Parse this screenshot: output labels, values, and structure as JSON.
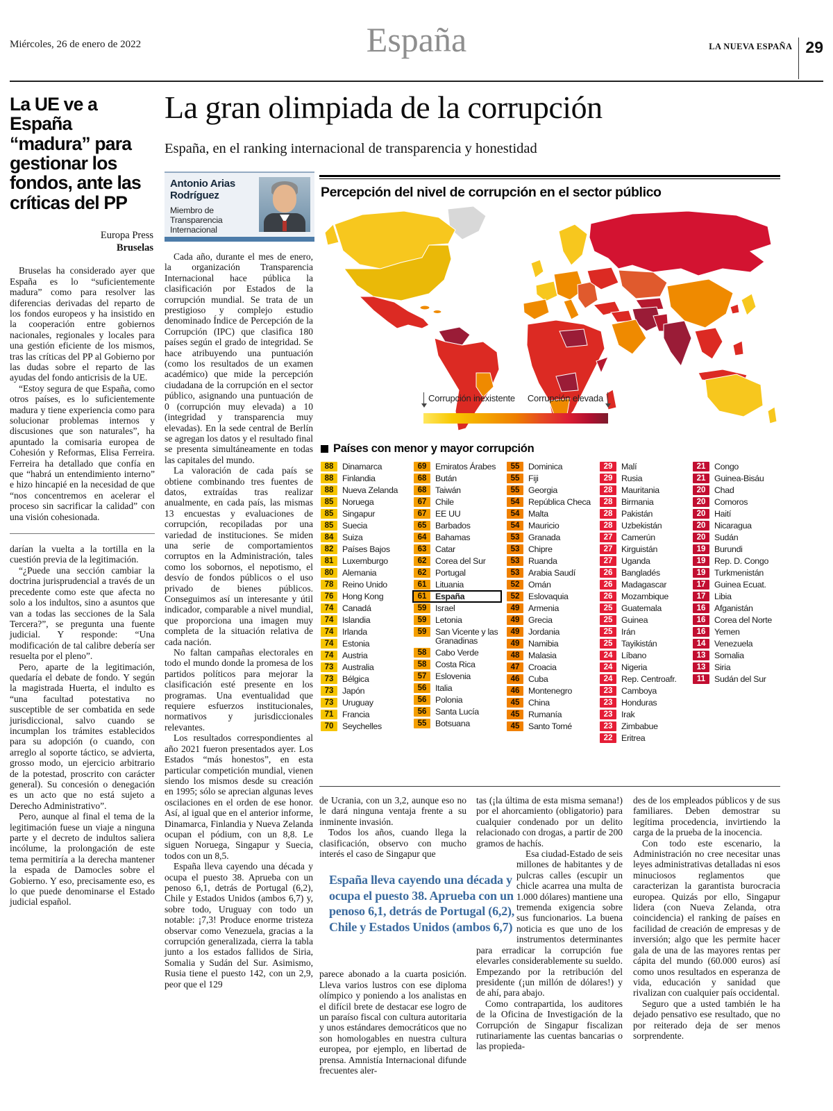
{
  "header": {
    "date": "Miércoles, 26 de enero de 2022",
    "section": "España",
    "masthead": "LA NUEVA ESPAÑA",
    "page_number": "29"
  },
  "left_article": {
    "headline": "La UE ve a España “madura” para gestionar los fondos, ante las críticas del PP",
    "agency": "Europa Press",
    "place": "Bruselas",
    "paragraphs": [
      "Bruselas ha considerado ayer que España es lo “suficientemente madura” como para resolver las diferencias derivadas del reparto de los fondos europeos y ha insistido en la cooperación entre gobiernos nacionales, regionales y locales para una gestión eficiente de los mismos, tras las críticas del PP al Gobierno por las dudas sobre el reparto de las ayudas del fondo anticrisis de la UE.",
      "“Estoy segura de que España, como otros países, es lo suficientemente madura y tiene experiencia como para solucionar problemas internos y discusiones que son naturales”, ha apuntado la comisaria europea de Cohesión y Reformas, Elisa Ferreira. Ferreira ha detallado que confía en que “habrá un entendimiento interno” e hizo hincapié en la necesidad de que “nos concentremos en acelerar el proceso sin sacrificar la calidad” con una visión cohesionada."
    ],
    "fragment_paragraphs": [
      "darían la vuelta a la tortilla en la cuestión previa de la legitimación.",
      "“¿Puede una sección cambiar la doctrina jurisprudencial a través de un precedente como este que afecta no solo a los indultos, sino a asuntos que van a todas las secciones de la Sala Tercera?”, se pregunta una fuente judicial. Y responde: “Una modificación de tal calibre debería ser resuelta por el pleno”.",
      "Pero, aparte de la legitimación, quedaría el debate de fondo. Y según la magistrada Huerta, el indulto es “una facultad potestativa no susceptible de ser combatida en sede jurisdiccional, salvo cuando se incumplan los trámites establecidos para su adopción (o cuando, con arreglo al soporte táctico, se advierta, grosso modo, un ejercicio arbitrario de la potestad, proscrito con carácter general). Su concesión o denegación es un acto que no está sujeto a Derecho Administrativo”.",
      "Pero, aunque al final el tema de la legitimación fuese un viaje a ninguna parte y el decreto de indultos saliera incólume, la prolongación de este tema permitiría a la derecha mantener la espada de Damocles sobre el Gobierno. Y eso, precisamente eso, es lo que puede denominarse el Estado judicial español."
    ]
  },
  "main_article": {
    "headline": "La gran olimpiada de la corrupción",
    "subhead": "España, en el ranking internacional de transparencia y honestidad",
    "author_name": "Antonio Arias Rodríguez",
    "author_role": "Miembro de Transparencia Internacional",
    "col1_paragraphs": [
      "Cada año, durante el mes de enero, la organización Transparencia Internacional hace pública la clasificación por Estados de la corrupción mundial. Se trata de un prestigioso y complejo estudio denominado Índice de Percepción de la Corrupción (IPC) que clasifica 180 países según el grado de integridad. Se hace atribuyendo una puntuación (como los resultados de un examen académico) que mide la percepción ciudadana de la corrupción en el sector público, asignando una puntuación de 0 (corrupción muy elevada) a 10 (integridad y transparencia muy elevadas). En la sede central de Berlín se agregan los datos y el resultado final se presenta simultáneamente en todas las capitales del mundo.",
      "La valoración de cada país se obtiene combinando tres fuentes de datos, extraídas tras realizar anualmente, en cada país, las mismas 13 encuestas y evaluaciones de corrupción, recopiladas por una variedad de instituciones. Se miden una serie de comportamientos corruptos en la Administración, tales como los sobornos, el nepotismo, el desvío de fondos públicos o el uso privado de bienes públicos. Conseguimos así un interesante y útil indicador, comparable a nivel mundial, que proporciona una imagen muy completa de la situación relativa de cada nación.",
      "No faltan campañas electorales en todo el mundo donde la promesa de los partidos políticos para mejorar la clasificación esté presente en los programas. Una eventualidad que requiere esfuerzos institucionales, normativos y jurisdiccionales relevantes.",
      "Los resultados correspondientes al año 2021 fueron presentados ayer. Los Estados “más honestos”, en esta particular competición mundial, vienen siendo los mismos desde su creación en 1995; sólo se aprecian algunas leves oscilaciones en el orden de ese honor. Así, al igual que en el anterior informe, Dinamarca, Finlandia y Nueva Zelanda ocupan el pódium, con un 8,8. Le siguen Noruega, Singapur y Suecia, todos con un 8,5.",
      "España lleva cayendo una década y ocupa el puesto 38. Aprueba con un penoso 6,1, detrás de Portugal (6,2), Chile y Estados Unidos (ambos 6,7) y, sobre todo, Uruguay con todo un notable: ¡7,3! Produce enorme tristeza observar como Venezuela, gracias a la corrupción generalizada, cierra la tabla junto a los estados fallidos de Siria, Somalia y Sudán del Sur. Asimismo, Rusia tiene el puesto 142, con un 2,9, peor que el 129"
    ],
    "bottom_col1_lead": [
      "de Ucrania, con un 3,2, aunque eso no le dará ninguna ventaja frente a su inminente invasión.",
      "Todos los años, cuando llega la clasificación, observo con mucho interés el caso de Singapur que"
    ],
    "pull_quote": "España lleva cayendo una década y ocupa el puesto 38. Aprueba con un penoso 6,1, detrás de Portugal (6,2), Chile y Estados Unidos (ambos 6,7)",
    "bottom_col1_rest": [
      "parece abonado a la cuarta posición. Lleva varios lustros con ese diploma olímpico y poniendo a los analistas en el difícil brete de destacar ese logro de un paraíso fiscal con cultura autoritaria y unos estándares democráticos que no son homologables en nuestra cultura europea, por ejemplo, en libertad de prensa. Amnistía Internacional difunde frecuentes aler-"
    ],
    "bottom_col2_first": [
      "tas (¡la última de esta misma semana!) por el ahorcamiento (obligatorio) para cualquier condenado por un delito relacionado con drogas, a partir de 200 gramos de hachís."
    ],
    "bottom_col2_rest": [
      "Esa ciudad-Estado de seis millones de habitantes y de pulcras calles (escupir un chicle acarrea una multa de 1.000 dólares) mantiene una tremenda exigencia sobre sus funcionarios. La buena noticia es que uno de los instrumentos determinantes para erradicar la corrupción fue elevarles considerablemente su sueldo. Empezando por la retribución del presidente (¡un millón de dólares!) y de ahí, para abajo.",
      "Como contrapartida, los auditores de la Oficina de Investigación de la Corrupción de Singapur fiscalizan rutinariamente las cuentas bancarias o las propieda-"
    ],
    "bottom_col3_paragraphs": [
      "des de los empleados públicos y de sus familiares. Deben demostrar su legítima procedencia, invirtiendo la carga de la prueba de la inocencia.",
      "Con todo este escenario, la Administración no cree necesitar unas leyes administrativas detalladas ni esos minuciosos reglamentos que caracterizan la garantista burocracia europea. Quizás por ello, Singapur lidera (con Nueva Zelanda, otra coincidencia) el ranking de países en facilidad de creación de empresas y de inversión; algo que les permite hacer gala de una de las mayores rentas per cápita del mundo (60.000 euros) así como unos resultados en esperanza de vida, educación y sanidad que rivalizan con cualquier país occidental.",
      "Seguro que a usted también le ha dejado pensativo ese resultado, que no por reiterado deja de ser menos sorprendente."
    ]
  },
  "infographic": {
    "title": "Percepción del nivel de corrupción en el sector público",
    "legend": {
      "left": "Corrupción inexistente",
      "right": "Corrupción elevada"
    },
    "table_title": "Países con menor y mayor corrupción",
    "palette": {
      "badge_bg": [
        "#f5c400",
        "#f49e00",
        "#f08000",
        "#e51d36",
        "#c20e31"
      ],
      "badge_fg": [
        "#201a00",
        "#1a1200",
        "#1a0e00",
        "#ffffff",
        "#ffffff"
      ]
    },
    "map_palette": {
      "very_low": "#f7c71e",
      "low": "#eab908",
      "medium": "#ef8a00",
      "high": "#dc2a23",
      "very_high": "#9a1c37",
      "russia": "#d31331",
      "no_data": "#d8d8d8"
    },
    "columns": [
      [
        {
          "s": "88",
          "c": "Dinamarca"
        },
        {
          "s": "88",
          "c": "Finlandia"
        },
        {
          "s": "88",
          "c": "Nueva Zelanda"
        },
        {
          "s": "85",
          "c": "Noruega"
        },
        {
          "s": "85",
          "c": "Singapur"
        },
        {
          "s": "85",
          "c": "Suecia"
        },
        {
          "s": "84",
          "c": "Suiza"
        },
        {
          "s": "82",
          "c": "Países Bajos"
        },
        {
          "s": "81",
          "c": "Luxemburgo"
        },
        {
          "s": "80",
          "c": "Alemania"
        },
        {
          "s": "78",
          "c": "Reino Unido"
        },
        {
          "s": "76",
          "c": "Hong Kong"
        },
        {
          "s": "74",
          "c": "Canadá"
        },
        {
          "s": "74",
          "c": "Islandia"
        },
        {
          "s": "74",
          "c": "Irlanda"
        },
        {
          "s": "74",
          "c": "Estonia"
        },
        {
          "s": "74",
          "c": "Austria"
        },
        {
          "s": "73",
          "c": "Australia"
        },
        {
          "s": "73",
          "c": "Bélgica"
        },
        {
          "s": "73",
          "c": "Japón"
        },
        {
          "s": "73",
          "c": "Uruguay"
        },
        {
          "s": "71",
          "c": "Francia"
        },
        {
          "s": "70",
          "c": "Seychelles"
        }
      ],
      [
        {
          "s": "69",
          "c": "Emiratos Árabes"
        },
        {
          "s": "68",
          "c": "Bután"
        },
        {
          "s": "68",
          "c": "Taiwán"
        },
        {
          "s": "67",
          "c": "Chile"
        },
        {
          "s": "67",
          "c": "EE UU"
        },
        {
          "s": "65",
          "c": "Barbados"
        },
        {
          "s": "64",
          "c": "Bahamas"
        },
        {
          "s": "63",
          "c": "Catar"
        },
        {
          "s": "62",
          "c": "Corea del Sur"
        },
        {
          "s": "62",
          "c": "Portugal"
        },
        {
          "s": "61",
          "c": "Lituania"
        },
        {
          "s": "61",
          "c": "España",
          "h": true
        },
        {
          "s": "59",
          "c": "Israel"
        },
        {
          "s": "59",
          "c": "Letonia"
        },
        {
          "s": "59",
          "c": "San Vicente y las Granadinas"
        },
        {
          "s": "58",
          "c": "Cabo Verde"
        },
        {
          "s": "58",
          "c": "Costa Rica"
        },
        {
          "s": "57",
          "c": "Eslovenia"
        },
        {
          "s": "56",
          "c": "Italia"
        },
        {
          "s": "56",
          "c": "Polonia"
        },
        {
          "s": "56",
          "c": "Santa Lucía"
        },
        {
          "s": "55",
          "c": "Botsuana"
        }
      ],
      [
        {
          "s": "55",
          "c": "Dominica"
        },
        {
          "s": "55",
          "c": "Fiji"
        },
        {
          "s": "55",
          "c": "Georgia"
        },
        {
          "s": "54",
          "c": "República Checa"
        },
        {
          "s": "54",
          "c": "Malta"
        },
        {
          "s": "54",
          "c": "Mauricio"
        },
        {
          "s": "53",
          "c": "Granada"
        },
        {
          "s": "53",
          "c": "Chipre"
        },
        {
          "s": "53",
          "c": "Ruanda"
        },
        {
          "s": "53",
          "c": "Arabia Saudí"
        },
        {
          "s": "52",
          "c": "Omán"
        },
        {
          "s": "52",
          "c": "Eslovaquia"
        },
        {
          "s": "49",
          "c": "Armenia"
        },
        {
          "s": "49",
          "c": "Grecia"
        },
        {
          "s": "49",
          "c": "Jordania"
        },
        {
          "s": "49",
          "c": "Namibia"
        },
        {
          "s": "48",
          "c": "Malasia"
        },
        {
          "s": "47",
          "c": "Croacia"
        },
        {
          "s": "46",
          "c": "Cuba"
        },
        {
          "s": "46",
          "c": "Montenegro"
        },
        {
          "s": "45",
          "c": "China"
        },
        {
          "s": "45",
          "c": "Rumanía"
        },
        {
          "s": "45",
          "c": "Santo Tomé"
        }
      ],
      [
        {
          "s": "29",
          "c": "Malí"
        },
        {
          "s": "29",
          "c": "Rusia"
        },
        {
          "s": "28",
          "c": "Mauritania"
        },
        {
          "s": "28",
          "c": "Birmania"
        },
        {
          "s": "28",
          "c": "Pakistán"
        },
        {
          "s": "28",
          "c": "Uzbekistán"
        },
        {
          "s": "27",
          "c": "Camerún"
        },
        {
          "s": "27",
          "c": "Kirguistán"
        },
        {
          "s": "27",
          "c": "Uganda"
        },
        {
          "s": "26",
          "c": "Bangladés"
        },
        {
          "s": "26",
          "c": "Madagascar"
        },
        {
          "s": "26",
          "c": "Mozambique"
        },
        {
          "s": "25",
          "c": "Guatemala"
        },
        {
          "s": "25",
          "c": "Guinea"
        },
        {
          "s": "25",
          "c": "Irán"
        },
        {
          "s": "25",
          "c": "Tayikistán"
        },
        {
          "s": "24",
          "c": "Líbano"
        },
        {
          "s": "24",
          "c": "Nigeria"
        },
        {
          "s": "24",
          "c": "Rep. Centroafr."
        },
        {
          "s": "23",
          "c": "Camboya"
        },
        {
          "s": "23",
          "c": "Honduras"
        },
        {
          "s": "23",
          "c": "Irak"
        },
        {
          "s": "23",
          "c": "Zimbabue"
        },
        {
          "s": "22",
          "c": "Eritrea"
        }
      ],
      [
        {
          "s": "21",
          "c": "Congo"
        },
        {
          "s": "21",
          "c": "Guinea-Bisáu"
        },
        {
          "s": "20",
          "c": "Chad"
        },
        {
          "s": "20",
          "c": "Comoros"
        },
        {
          "s": "20",
          "c": "Haití"
        },
        {
          "s": "20",
          "c": "Nicaragua"
        },
        {
          "s": "20",
          "c": "Sudán"
        },
        {
          "s": "19",
          "c": "Burundi"
        },
        {
          "s": "19",
          "c": "Rep. D. Congo"
        },
        {
          "s": "19",
          "c": "Turkmenistán"
        },
        {
          "s": "17",
          "c": "Guinea Ecuat."
        },
        {
          "s": "17",
          "c": "Libia"
        },
        {
          "s": "16",
          "c": "Afganistán"
        },
        {
          "s": "16",
          "c": "Corea del Norte"
        },
        {
          "s": "16",
          "c": "Yemen"
        },
        {
          "s": "14",
          "c": "Venezuela"
        },
        {
          "s": "13",
          "c": "Somalia"
        },
        {
          "s": "13",
          "c": "Siria"
        },
        {
          "s": "11",
          "c": "Sudán del Sur"
        }
      ]
    ]
  }
}
